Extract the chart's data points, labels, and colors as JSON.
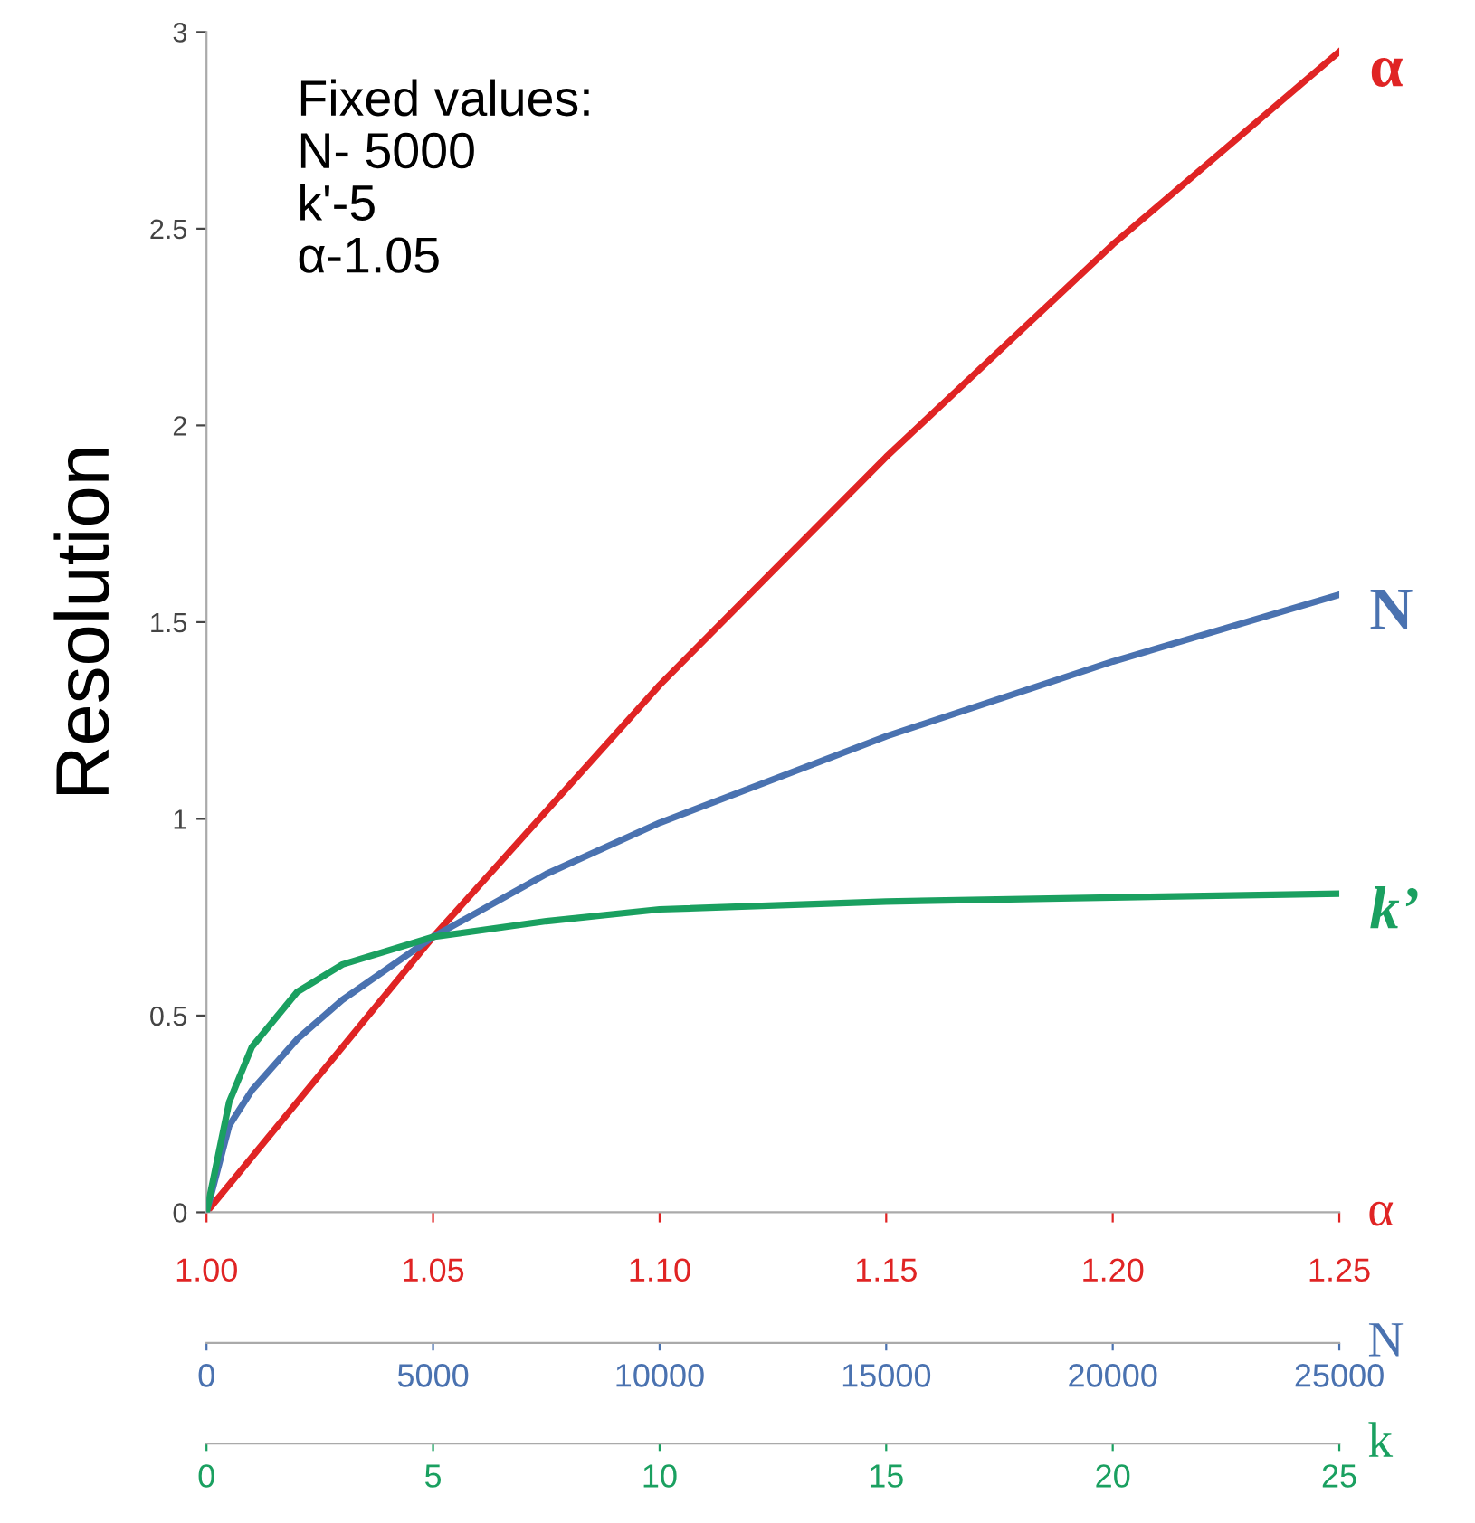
{
  "chart_data": [
    {
      "type": "line",
      "ylabel": "Resolution",
      "xlabel": "α",
      "annotations": [
        "Fixed values:\nN- 5000\nk'-5\nα-1.05"
      ],
      "xlim": [
        1.0,
        1.25
      ],
      "xticks": [
        {
          "value": 1.0,
          "label": "1.00"
        },
        {
          "value": 1.05,
          "label": "1.05"
        },
        {
          "value": 1.1,
          "label": "1.10"
        },
        {
          "value": 1.15,
          "label": "1.15"
        },
        {
          "value": 1.2,
          "label": "1.20"
        },
        {
          "value": 1.25,
          "label": "1.25"
        }
      ],
      "ylim": [
        0,
        3
      ],
      "yticks": [
        0,
        0.5,
        1,
        1.5,
        2,
        2.5,
        3
      ],
      "grid": false,
      "legend": false,
      "marker": "none",
      "line_style": "solid",
      "series": [
        {
          "name": "α",
          "color": "#e02424",
          "x": [
            1.0,
            1.05,
            1.1,
            1.15,
            1.2,
            1.25
          ],
          "values": [
            0,
            0.7,
            1.34,
            1.92,
            2.46,
            2.95
          ]
        }
      ]
    },
    {
      "type": "line",
      "xlabel": "N",
      "xlim": [
        0,
        25000
      ],
      "xticks": [
        0,
        5000,
        10000,
        15000,
        20000,
        25000
      ],
      "ylim": [
        0,
        3
      ],
      "tick_labels": "x",
      "grid": false,
      "legend": false,
      "marker": "none",
      "line_style": "solid",
      "series": [
        {
          "name": "N",
          "color": "#4a72b0",
          "x": [
            0,
            500,
            1000,
            2000,
            3000,
            5000,
            7500,
            10000,
            15000,
            20000,
            25000
          ],
          "values": [
            0,
            0.22,
            0.31,
            0.44,
            0.54,
            0.7,
            0.86,
            0.99,
            1.21,
            1.4,
            1.57
          ]
        }
      ]
    },
    {
      "type": "line",
      "xlabel": "k",
      "xlim": [
        0,
        25
      ],
      "xticks": [
        0,
        5,
        10,
        15,
        20,
        25
      ],
      "ylim": [
        0,
        3
      ],
      "tick_labels": "x",
      "grid": false,
      "legend": false,
      "marker": "none",
      "line_style": "solid",
      "series": [
        {
          "name": "k’",
          "color": "#1aa060",
          "x": [
            0,
            0.5,
            1,
            2,
            3,
            5,
            7.5,
            10,
            15,
            20,
            25
          ],
          "values": [
            0,
            0.28,
            0.42,
            0.56,
            0.63,
            0.7,
            0.74,
            0.77,
            0.79,
            0.8,
            0.81
          ]
        }
      ]
    }
  ]
}
